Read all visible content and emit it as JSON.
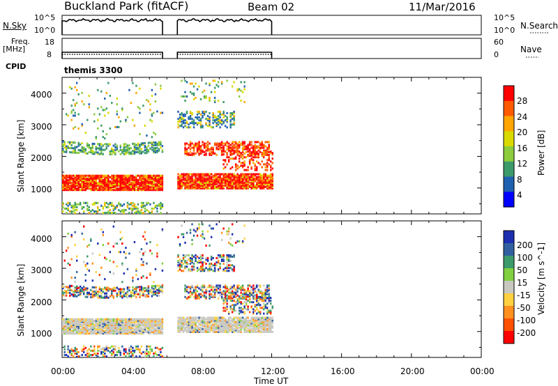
{
  "header": {
    "site": "Buckland Park (fitACF)",
    "beam": "Beam 02",
    "date": "11/Mar/2016"
  },
  "nsky_panel": {
    "left_label": "N.Sky",
    "left_ticks": [
      "10^5",
      "10^0"
    ],
    "right_label": "N.Search",
    "right_ticks": [
      "10^5",
      "10^0"
    ]
  },
  "freq_panel": {
    "left_label_line1": "Freq.",
    "left_label_line2": "[MHz]",
    "left_ticks": [
      "18",
      "8"
    ],
    "right_label": "Nave",
    "right_ticks": [
      "60",
      "0"
    ]
  },
  "cpid_panel": {
    "label": "CPID",
    "program": "themis 3300"
  },
  "time_axis": {
    "label": "Time UT",
    "ticks": [
      "00:00",
      "04:00",
      "08:00",
      "12:00",
      "16:00",
      "20:00",
      "00:00"
    ]
  },
  "chart_data": [
    {
      "type": "heatmap",
      "parameter": "Power",
      "ylabel": "Slant Range [km]",
      "yticks": [
        "4000",
        "3000",
        "2000",
        "1000"
      ],
      "ylim": [
        180,
        4500
      ],
      "xlim_hours": [
        0,
        24
      ],
      "colorbar_label": "Power [dB]",
      "colorbar_ticks": [
        "28",
        "24",
        "20",
        "16",
        "12",
        "8",
        "4"
      ],
      "colorbar_colors": [
        "#ff0000",
        "#ff5a00",
        "#ffa500",
        "#d9d900",
        "#8ccc3c",
        "#3c9a6a",
        "#2060b0",
        "#0000ff"
      ],
      "data_gap_hours": [
        5.75,
        6.6
      ],
      "data_end_hour": 12.0
    },
    {
      "type": "heatmap",
      "parameter": "Velocity",
      "ylabel": "Slant Range [km]",
      "yticks": [
        "4000",
        "3000",
        "2000",
        "1000"
      ],
      "ylim": [
        180,
        4500
      ],
      "xlim_hours": [
        0,
        24
      ],
      "colorbar_label": "Velocity [m s^-1]",
      "colorbar_ticks": [
        "200",
        "100",
        "50",
        "15",
        "-15",
        "-50",
        "-100",
        "-200"
      ],
      "colorbar_colors": [
        "#1c2fb0",
        "#3060a0",
        "#3c9a6a",
        "#80d040",
        "#c8c8c0",
        "#ffd040",
        "#ff9020",
        "#ff5000",
        "#ff0000"
      ],
      "data_gap_hours": [
        5.75,
        6.6
      ],
      "data_end_hour": 12.0
    }
  ]
}
